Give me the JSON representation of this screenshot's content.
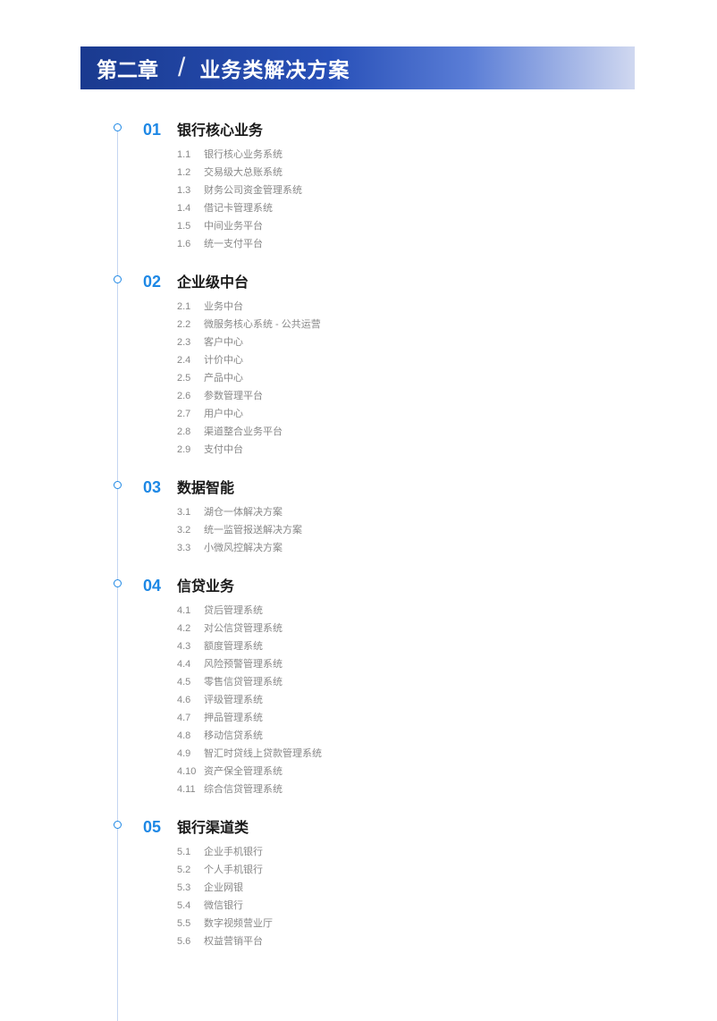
{
  "header": {
    "chapter_label": "第二章",
    "chapter_title": "业务类解决方案"
  },
  "colors": {
    "accent_blue": "#1e88e5",
    "dark_blue": "#1a3a8f",
    "heading_black": "#1a1a1a",
    "sub_gray": "#888888",
    "line_blue": "#c5d6f2"
  },
  "typography": {
    "header_fontsize": 23,
    "section_number_fontsize": 18,
    "section_title_fontsize": 16,
    "subsection_fontsize": 11
  },
  "toc": [
    {
      "number": "01",
      "title": "银行核心业务",
      "items": [
        {
          "num": "1.1",
          "label": "银行核心业务系统"
        },
        {
          "num": "1.2",
          "label": "交易级大总账系统"
        },
        {
          "num": "1.3",
          "label": "财务公司资金管理系统"
        },
        {
          "num": "1.4",
          "label": "借记卡管理系统"
        },
        {
          "num": "1.5",
          "label": "中间业务平台"
        },
        {
          "num": "1.6",
          "label": "统一支付平台"
        }
      ]
    },
    {
      "number": "02",
      "title": "企业级中台",
      "items": [
        {
          "num": "2.1",
          "label": "业务中台"
        },
        {
          "num": "2.2",
          "label": "微服务核心系统 - 公共运营"
        },
        {
          "num": "2.3",
          "label": "客户中心"
        },
        {
          "num": "2.4",
          "label": "计价中心"
        },
        {
          "num": "2.5",
          "label": "产品中心"
        },
        {
          "num": "2.6",
          "label": "参数管理平台"
        },
        {
          "num": "2.7",
          "label": "用户中心"
        },
        {
          "num": "2.8",
          "label": "渠道整合业务平台"
        },
        {
          "num": "2.9",
          "label": "支付中台"
        }
      ]
    },
    {
      "number": "03",
      "title": "数据智能",
      "items": [
        {
          "num": "3.1",
          "label": "湖仓一体解决方案"
        },
        {
          "num": "3.2",
          "label": "统一监管报送解决方案"
        },
        {
          "num": "3.3",
          "label": "小微风控解决方案"
        }
      ]
    },
    {
      "number": "04",
      "title": "信贷业务",
      "items": [
        {
          "num": "4.1",
          "label": "贷后管理系统"
        },
        {
          "num": "4.2",
          "label": "对公信贷管理系统"
        },
        {
          "num": "4.3",
          "label": "额度管理系统"
        },
        {
          "num": "4.4",
          "label": "风险预警管理系统"
        },
        {
          "num": "4.5",
          "label": "零售信贷管理系统"
        },
        {
          "num": "4.6",
          "label": "评级管理系统"
        },
        {
          "num": "4.7",
          "label": "押品管理系统"
        },
        {
          "num": "4.8",
          "label": "移动信贷系统"
        },
        {
          "num": "4.9",
          "label": "智汇时贷线上贷款管理系统"
        },
        {
          "num": "4.10",
          "label": "资产保全管理系统"
        },
        {
          "num": "4.11",
          "label": "综合信贷管理系统"
        }
      ]
    },
    {
      "number": "05",
      "title": "银行渠道类",
      "items": [
        {
          "num": "5.1",
          "label": "企业手机银行"
        },
        {
          "num": "5.2",
          "label": "个人手机银行"
        },
        {
          "num": "5.3",
          "label": "企业网银"
        },
        {
          "num": "5.4",
          "label": "微信银行"
        },
        {
          "num": "5.5",
          "label": "数字视频营业厅"
        },
        {
          "num": "5.6",
          "label": "权益营销平台"
        }
      ]
    }
  ]
}
